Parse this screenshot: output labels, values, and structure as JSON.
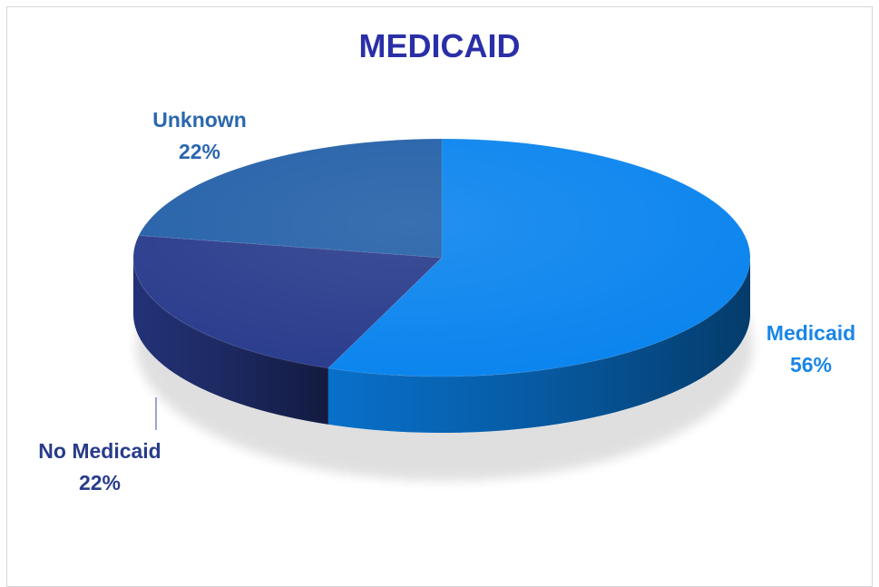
{
  "chart_data": {
    "type": "pie",
    "title": "MEDICAID",
    "slices": [
      {
        "label": "Medicaid",
        "value": 56,
        "display": "56%",
        "color": "#0a84ee",
        "text_color": "#1a86e6"
      },
      {
        "label": "No Medicaid",
        "value": 22,
        "display": "22%",
        "color": "#293b8c",
        "text_color": "#283c8a"
      },
      {
        "label": "Unknown",
        "value": 22,
        "display": "22%",
        "color": "#2460a8",
        "text_color": "#2a67ae"
      }
    ]
  }
}
